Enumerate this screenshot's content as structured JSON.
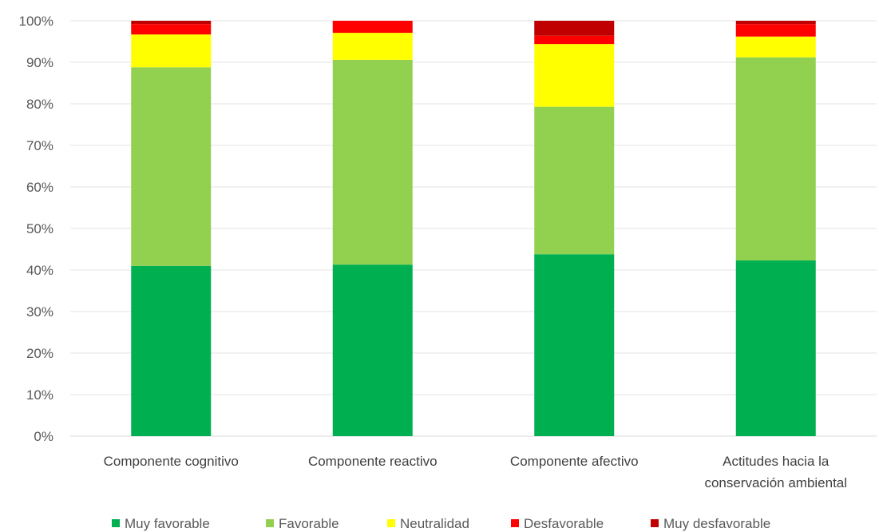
{
  "chart_data": {
    "type": "bar",
    "stacked": true,
    "title": "",
    "xlabel": "",
    "ylabel": "",
    "ylim": [
      0,
      100
    ],
    "yticks": [
      "0%",
      "10%",
      "20%",
      "30%",
      "40%",
      "50%",
      "60%",
      "70%",
      "80%",
      "90%",
      "100%"
    ],
    "grid": true,
    "legend_position": "bottom",
    "categories": [
      [
        "Componente cognitivo"
      ],
      [
        "Componente reactivo"
      ],
      [
        "Componente afectivo"
      ],
      [
        "Actitudes hacia la",
        "conservación ambiental"
      ]
    ],
    "series": [
      {
        "name": "Muy favorable",
        "color": "#00b050",
        "values": [
          41,
          41.3,
          43.8,
          42.3
        ]
      },
      {
        "name": "Favorable",
        "color": "#92d050",
        "values": [
          47.8,
          49.3,
          35.5,
          48.9
        ]
      },
      {
        "name": "Neutralidad",
        "color": "#ffff00",
        "values": [
          7.9,
          6.5,
          15.1,
          5
        ]
      },
      {
        "name": "Desfavorable",
        "color": "#ff0000",
        "values": [
          2.5,
          2.9,
          2,
          3
        ]
      },
      {
        "name": "Muy desfavorable",
        "color": "#c00000",
        "values": [
          0.8,
          0,
          3.6,
          0.8
        ]
      }
    ]
  }
}
